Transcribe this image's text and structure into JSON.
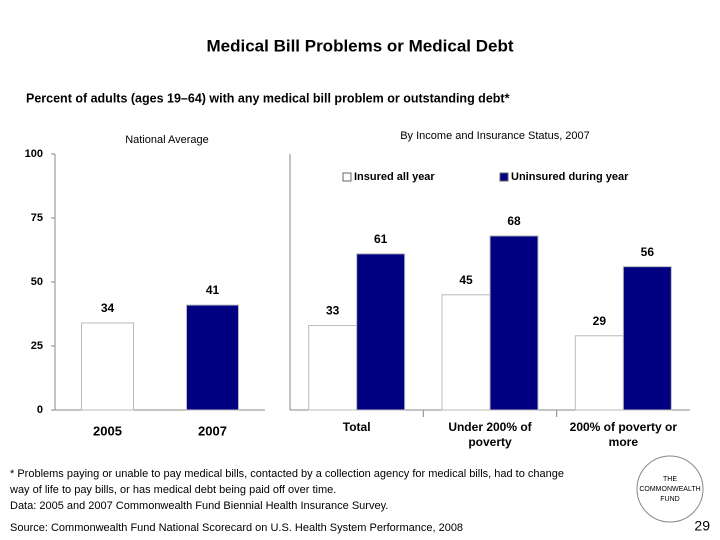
{
  "slide": {
    "title": "Medical Bill Problems or Medical Debt",
    "subtitle": "Percent of adults (ages 19–64) with any medical bill problem or outstanding debt*",
    "footnote": [
      "* Problems paying or unable to pay medical bills, contacted by a collection agency for medical bills, had to change",
      "way of life to pay bills, or has medical debt being paid off over time.",
      "Data: 2005 and 2007 Commonwealth Fund Biennial Health Insurance Survey."
    ],
    "source": "Source: Commonwealth Fund National Scorecard on U.S. Health System Performance, 2008",
    "logo": [
      "THE",
      "COMMONWEALTH",
      "FUND"
    ],
    "page_number": "29"
  },
  "chart_data": [
    {
      "type": "bar",
      "title": "National Average",
      "categories": [
        "2005",
        "2007"
      ],
      "values": [
        34,
        41
      ],
      "colors": [
        "#ffffff",
        "#000080"
      ],
      "ylim": [
        0,
        100
      ],
      "yticks": [
        0,
        25,
        50,
        75,
        100
      ]
    },
    {
      "type": "grouped-bar",
      "title": "By Income and Insurance Status, 2007",
      "categories": [
        "Total",
        "Under 200% of poverty",
        "200% of poverty or more"
      ],
      "series": [
        {
          "name": "Insured all year",
          "color": "#ffffff",
          "values": [
            33,
            45,
            29
          ]
        },
        {
          "name": "Uninsured during year",
          "color": "#000080",
          "values": [
            61,
            68,
            56
          ]
        }
      ],
      "ylim": [
        0,
        100
      ],
      "legend": "top"
    }
  ]
}
